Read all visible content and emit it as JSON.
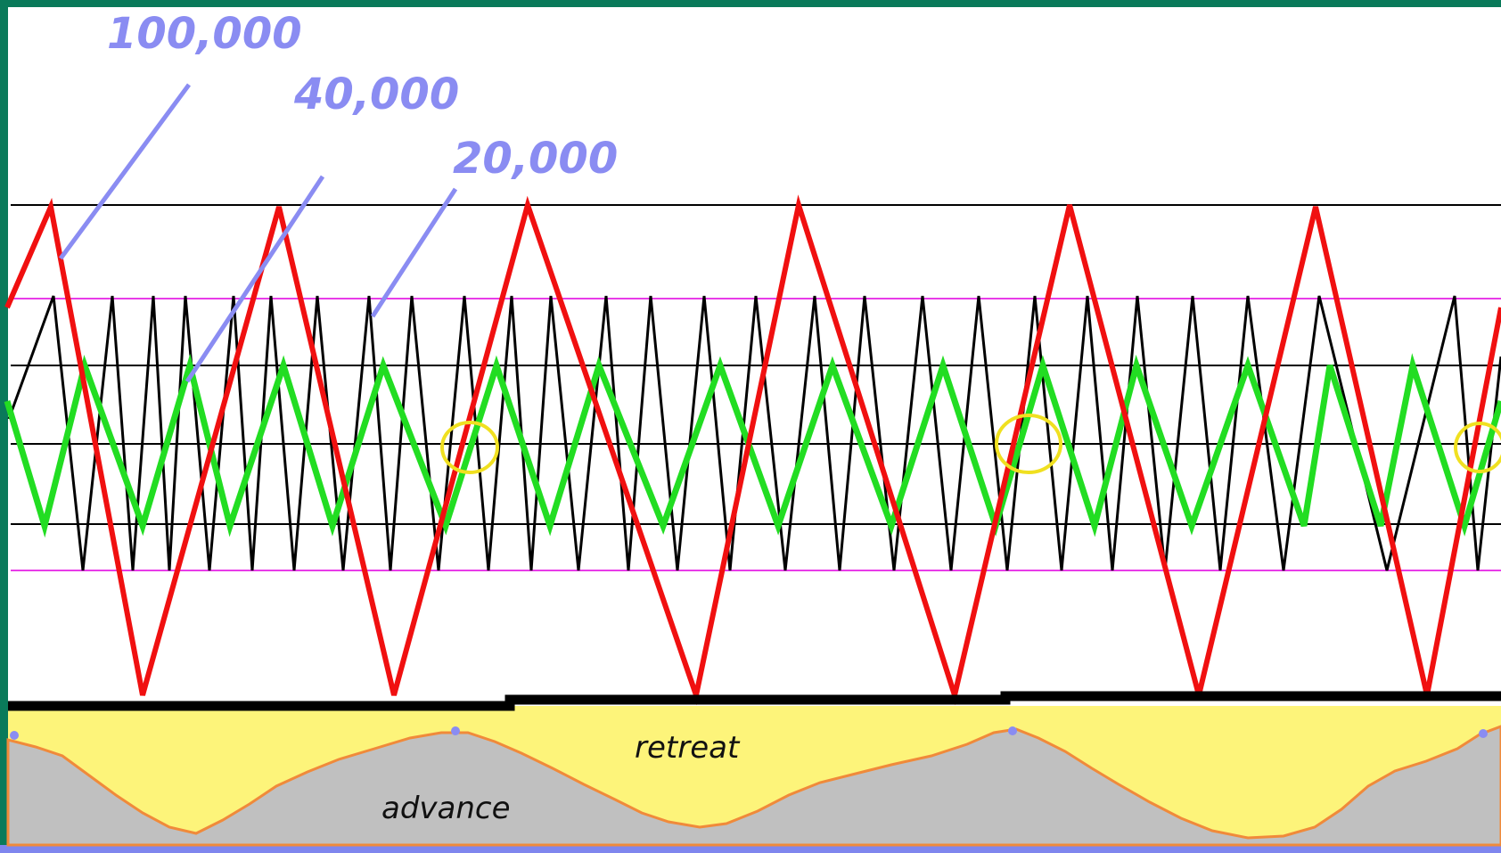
{
  "period_labels": [
    "100,000",
    "40,000",
    "20,000"
  ],
  "region_labels": {
    "retreat": "retreat",
    "advance": "advance"
  },
  "colors": {
    "frame": "#0a7a5a",
    "bottom_border": "#7f86ee",
    "cycle_100k": "#f01010",
    "cycle_40k": "#22dd22",
    "cycle_20k": "#000000",
    "reference_magenta": "#e83ce8",
    "reference_black": "#000000",
    "label_leader": "#8a8cf2",
    "coincidence_marker": "#f0e020",
    "ice_retreat_fill": "#fdf47a",
    "ice_advance_fill": "#c0c0c0",
    "ice_boundary": "#f08a3a",
    "baseline": "#000000"
  },
  "cycle_counts": {
    "cycle_100k_peaks": 6,
    "cycle_40k_peaks": 13,
    "cycle_20k_peaks": 27,
    "coincidence_markers": 3
  }
}
